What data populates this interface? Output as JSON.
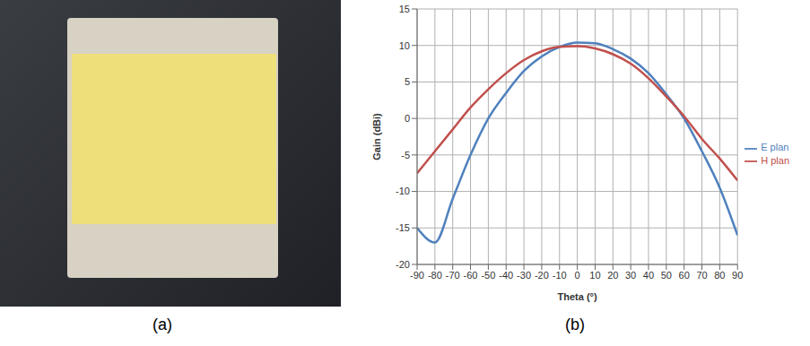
{
  "panel_labels": [
    "(a)",
    "(b)"
  ],
  "chart_data": {
    "type": "line",
    "xlabel": "Theta (°)",
    "ylabel": "Gain (dBi)",
    "x": [
      -90,
      -80,
      -70,
      -60,
      -50,
      -40,
      -30,
      -20,
      -10,
      0,
      10,
      20,
      30,
      40,
      50,
      60,
      70,
      80,
      90
    ],
    "series": [
      {
        "name": "E plan",
        "color": "#4f81bd",
        "values": [
          -15,
          -17,
          -11,
          -5,
          0,
          3.5,
          6.5,
          8.5,
          9.8,
          10.4,
          10.3,
          9.5,
          8.2,
          6.2,
          3.3,
          0,
          -4.5,
          -9.5,
          -16
        ]
      },
      {
        "name": "H plan",
        "color": "#c0504d",
        "values": [
          -7.5,
          -4.5,
          -1.5,
          1.5,
          4,
          6.2,
          8,
          9.2,
          9.8,
          9.9,
          9.6,
          8.8,
          7.5,
          5.5,
          3,
          0.3,
          -2.8,
          -5.5,
          -8.5
        ]
      }
    ],
    "xlim": [
      -90,
      90
    ],
    "xticks": [
      -90,
      -80,
      -70,
      -60,
      -50,
      -40,
      -30,
      -20,
      -10,
      0,
      10,
      20,
      30,
      40,
      50,
      60,
      70,
      80,
      90
    ],
    "ylim": [
      -20,
      15
    ],
    "yticks": [
      -20,
      -15,
      -10,
      -5,
      0,
      5,
      10,
      15
    ],
    "grid": true,
    "legend": "right"
  }
}
